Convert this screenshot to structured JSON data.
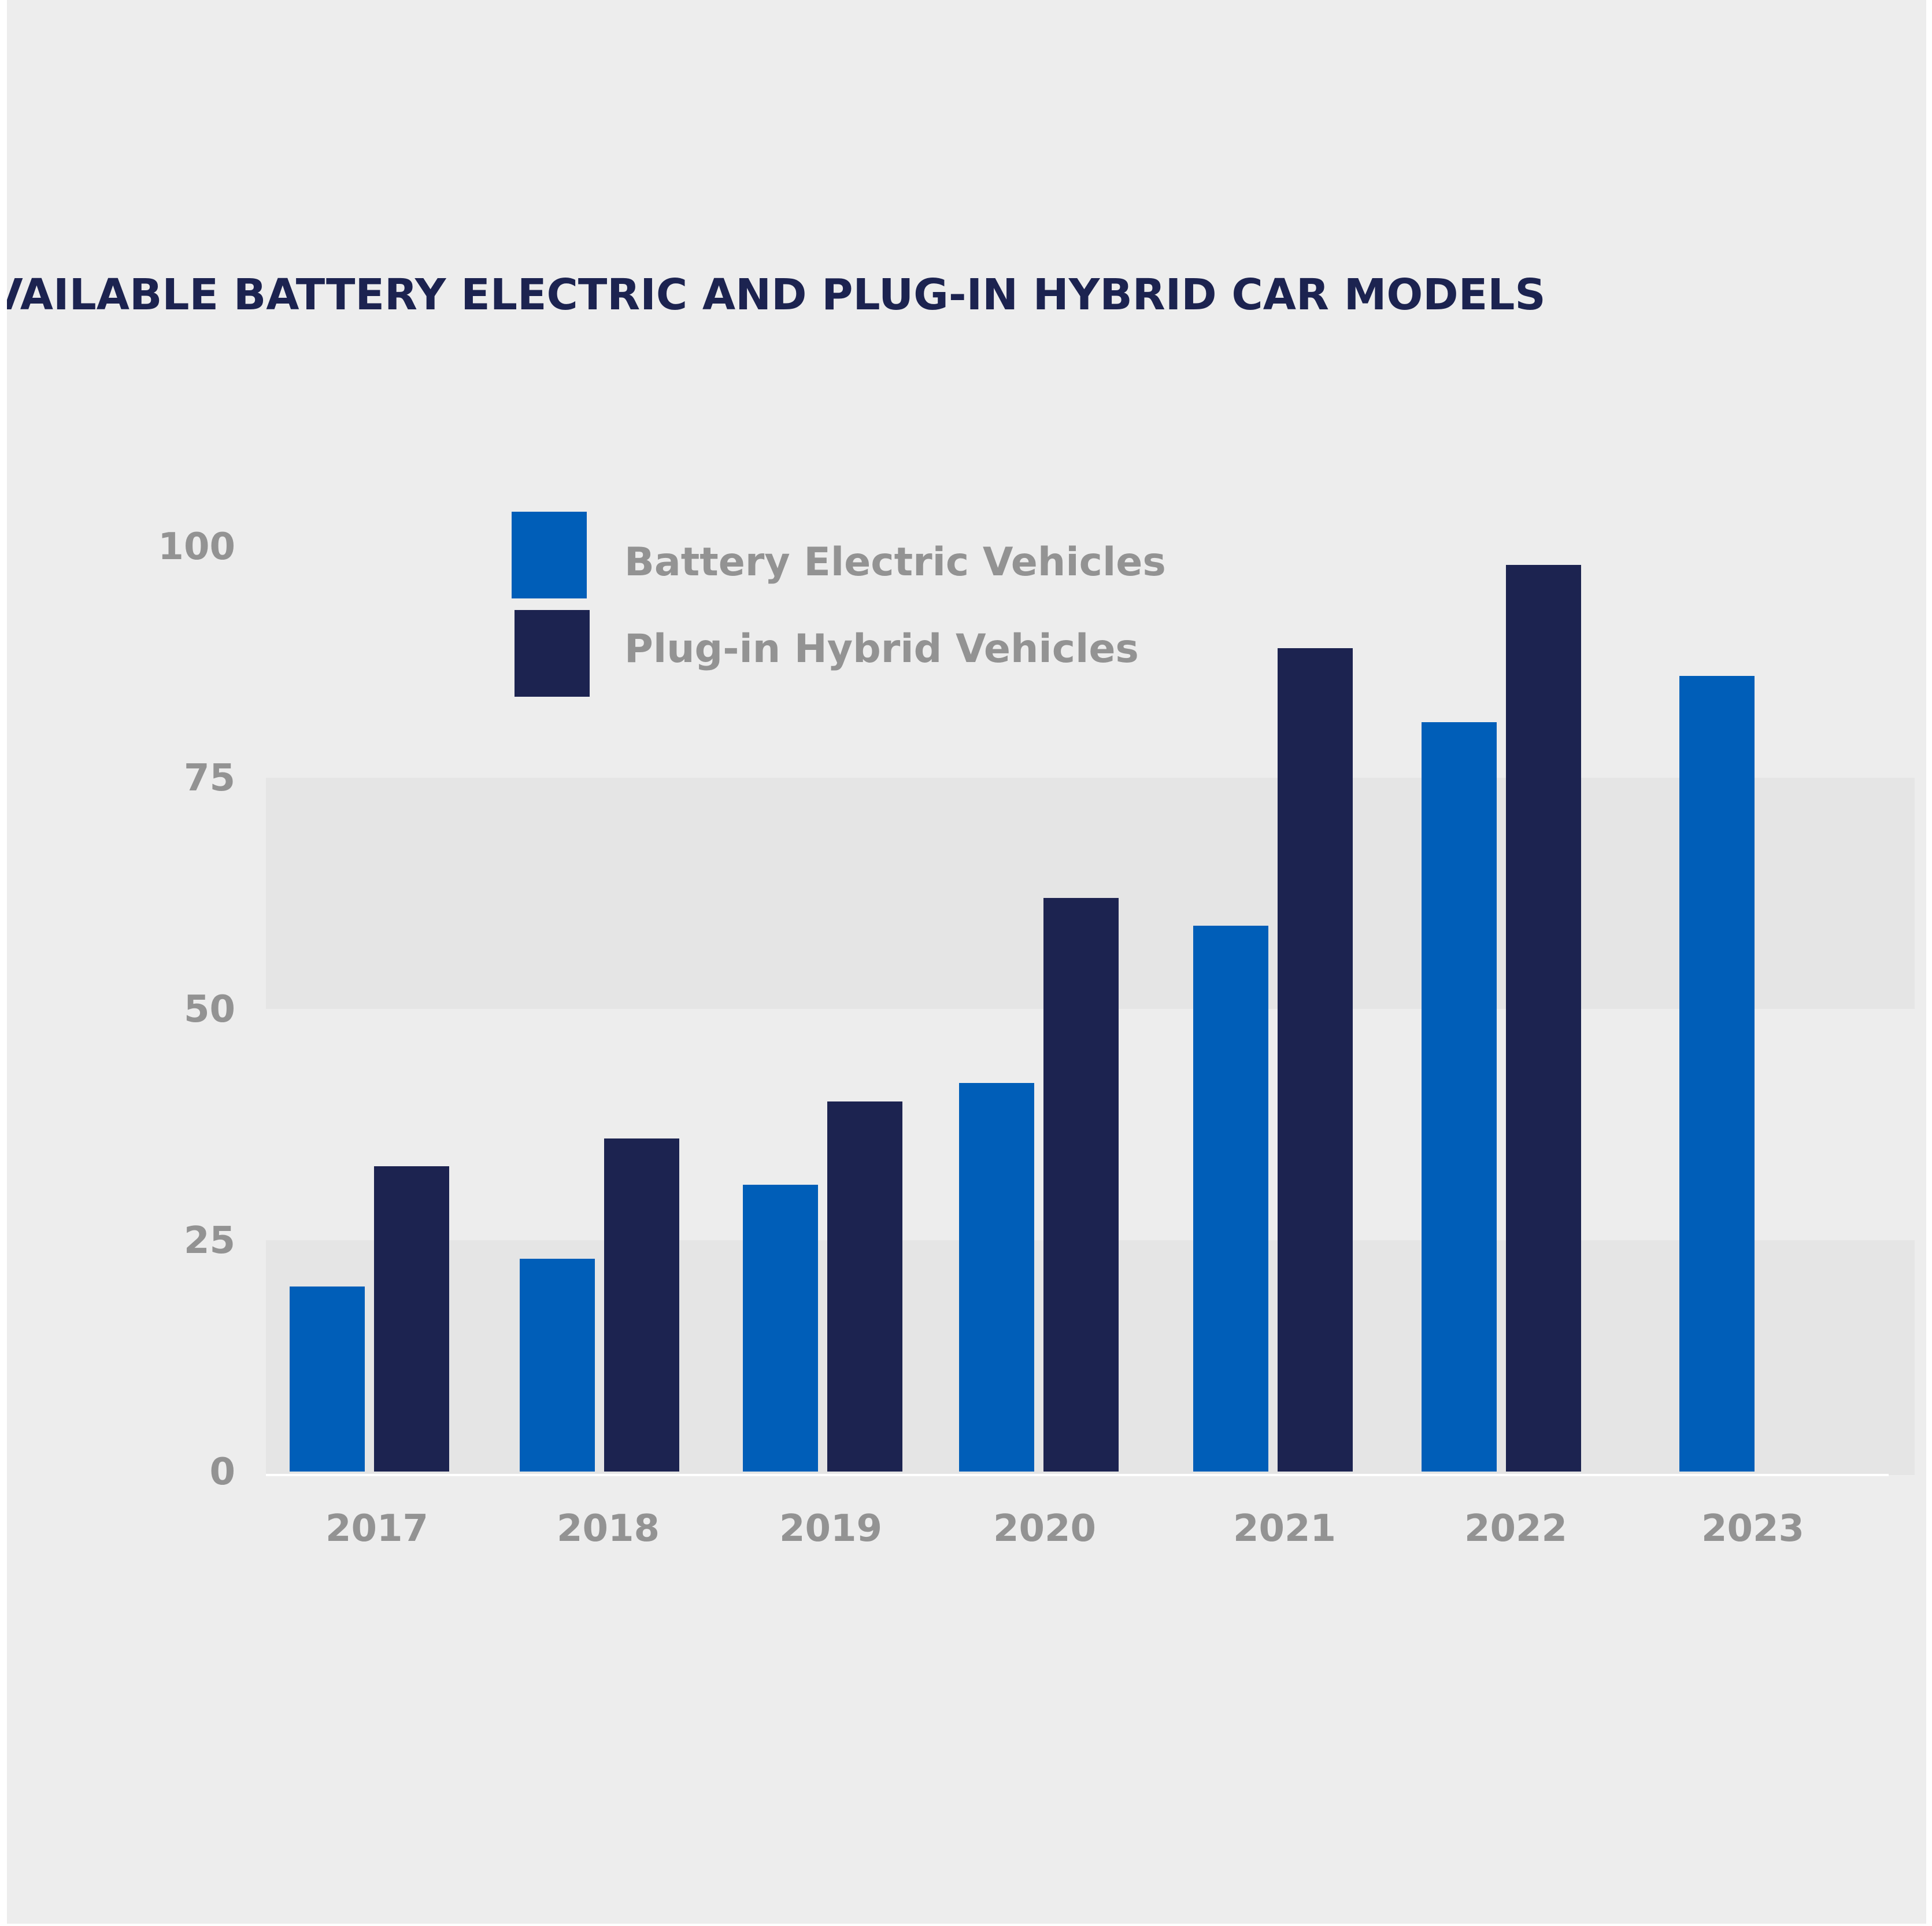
{
  "chart_data": {
    "type": "bar",
    "title": "AVAILABLE BATTERY ELECTRIC AND PLUG-IN HYBRID CAR MODELS",
    "xlabel": "",
    "ylabel": "",
    "categories": [
      "2017",
      "2018",
      "2019",
      "2020",
      "2021",
      "2022",
      "2023"
    ],
    "series": [
      {
        "name": "Battery Electric Vehicles",
        "color": "#005eb8",
        "values": [
          20,
          23,
          31,
          42,
          59,
          81,
          86
        ]
      },
      {
        "name": "Plug-in Hybrid Vehicles",
        "color": "#1c2350",
        "values": [
          33,
          36,
          40,
          62,
          89,
          98,
          null
        ]
      }
    ],
    "ylim": [
      0,
      100
    ],
    "yticks": [
      "0",
      "25",
      "50",
      "75",
      "100"
    ],
    "legend_position": "top-left",
    "grid": false
  },
  "colors": {
    "background": "#ededed",
    "band": "#e5e5e5",
    "title": "#1c2350",
    "label": "#939393",
    "axis": "#ffffff"
  }
}
